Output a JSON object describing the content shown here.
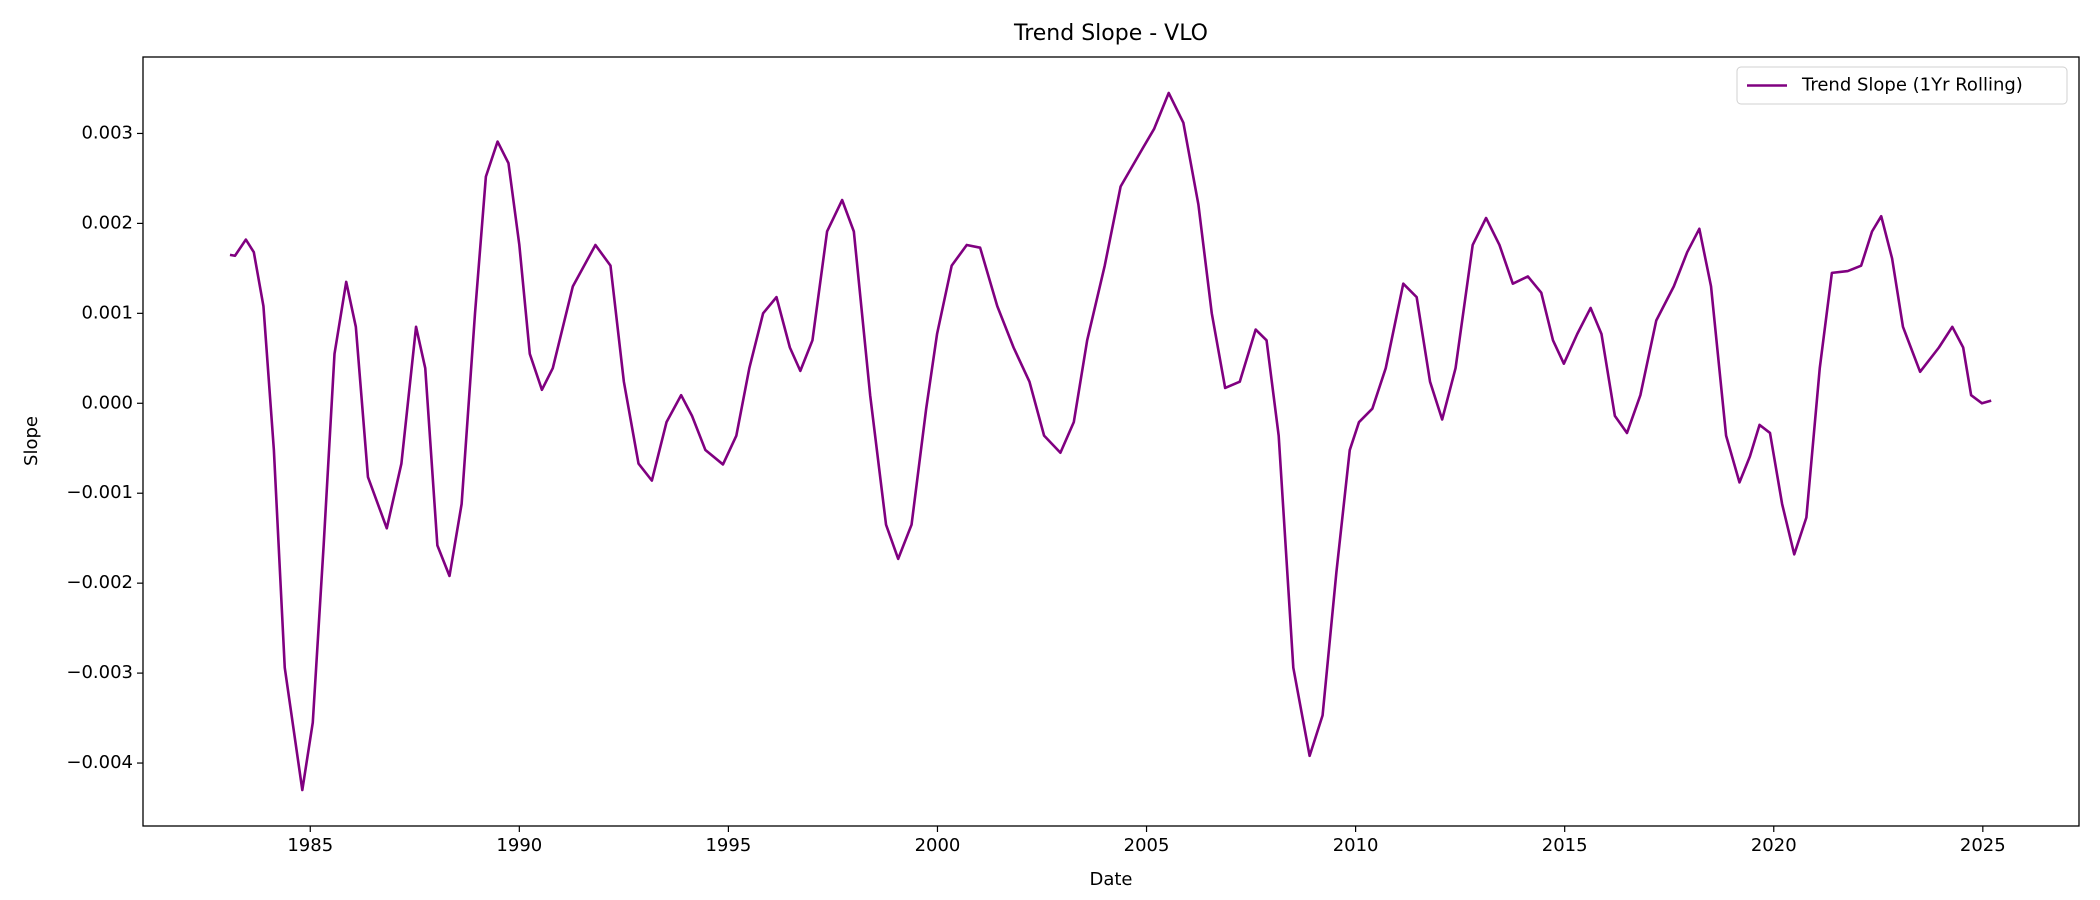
{
  "chart_data": {
    "type": "line",
    "title": "Trend Slope - VLO",
    "xlabel": "Date",
    "ylabel": "Slope",
    "x": [
      1983.08,
      1983.2,
      1983.46,
      1983.65,
      1983.88,
      1984.13,
      1984.39,
      1984.81,
      1985.06,
      1985.32,
      1985.58,
      1985.86,
      1986.09,
      1986.38,
      1986.83,
      1987.18,
      1987.53,
      1987.75,
      1988.04,
      1988.33,
      1988.62,
      1988.94,
      1989.2,
      1989.48,
      1989.74,
      1990.0,
      1990.25,
      1990.54,
      1990.8,
      1991.28,
      1991.82,
      1992.18,
      1992.5,
      1992.85,
      1993.17,
      1993.52,
      1993.87,
      1994.13,
      1994.45,
      1994.87,
      1995.19,
      1995.5,
      1995.83,
      1996.15,
      1996.47,
      1996.72,
      1997.01,
      1997.36,
      1997.72,
      1998.0,
      1998.39,
      1998.77,
      1999.06,
      1999.38,
      1999.73,
      1999.99,
      2000.34,
      2000.7,
      2001.02,
      2001.43,
      2001.82,
      2002.2,
      2002.55,
      2002.94,
      2003.26,
      2003.58,
      2004.0,
      2004.38,
      2004.89,
      2005.18,
      2005.53,
      2005.88,
      2006.24,
      2006.56,
      2006.88,
      2007.23,
      2007.61,
      2007.87,
      2008.16,
      2008.51,
      2008.9,
      2009.21,
      2009.54,
      2009.86,
      2010.08,
      2010.4,
      2010.72,
      2011.14,
      2011.46,
      2011.78,
      2012.07,
      2012.39,
      2012.8,
      2013.12,
      2013.44,
      2013.76,
      2014.12,
      2014.44,
      2014.72,
      2014.98,
      2015.3,
      2015.62,
      2015.88,
      2016.2,
      2016.49,
      2016.81,
      2017.19,
      2017.61,
      2017.93,
      2018.22,
      2018.5,
      2018.86,
      2019.18,
      2019.43,
      2019.66,
      2019.91,
      2020.2,
      2020.49,
      2020.78,
      2021.1,
      2021.39,
      2021.77,
      2022.09,
      2022.35,
      2022.57,
      2022.83,
      2023.09,
      2023.5,
      2023.95,
      2024.27,
      2024.53,
      2024.72,
      2024.98,
      2025.2
    ],
    "series": [
      {
        "name": "Trend Slope (1Yr Rolling)",
        "color": "#800080",
        "values": [
          0.00165,
          0.00164,
          0.00182,
          0.00168,
          0.00108,
          -0.00052,
          -0.00294,
          -0.0043,
          -0.00355,
          -0.00158,
          0.00055,
          0.00135,
          0.00085,
          -0.00082,
          -0.00139,
          -0.00067,
          0.00085,
          0.00039,
          -0.00158,
          -0.00192,
          -0.00112,
          0.001,
          0.00252,
          0.00291,
          0.00267,
          0.00176,
          0.00055,
          0.00015,
          0.00039,
          0.0013,
          0.00176,
          0.00153,
          0.00024,
          -0.00067,
          -0.00086,
          -0.00021,
          9e-05,
          -0.00014,
          -0.00052,
          -0.00068,
          -0.00036,
          0.00039,
          0.001,
          0.00118,
          0.00062,
          0.00036,
          0.0007,
          0.00191,
          0.00226,
          0.00191,
          9e-05,
          -0.00135,
          -0.00173,
          -0.00135,
          -6e-05,
          0.00077,
          0.00153,
          0.00176,
          0.00173,
          0.00108,
          0.00062,
          0.00024,
          -0.00036,
          -0.00055,
          -0.00021,
          0.0007,
          0.00153,
          0.00241,
          0.00282,
          0.00305,
          0.00345,
          0.00312,
          0.00221,
          0.001,
          0.00017,
          0.00024,
          0.00082,
          0.0007,
          -0.00036,
          -0.00294,
          -0.00392,
          -0.00347,
          -0.00188,
          -0.00052,
          -0.00021,
          -6e-05,
          0.00039,
          0.00133,
          0.00118,
          0.00024,
          -0.00018,
          0.00039,
          0.00176,
          0.00206,
          0.00176,
          0.00133,
          0.00141,
          0.00123,
          0.0007,
          0.00044,
          0.00077,
          0.00106,
          0.00077,
          -0.00014,
          -0.00033,
          9e-05,
          0.00092,
          0.0013,
          0.00168,
          0.00194,
          0.0013,
          -0.00036,
          -0.00088,
          -0.00059,
          -0.00024,
          -0.00033,
          -0.00112,
          -0.00168,
          -0.00127,
          0.00039,
          0.00145,
          0.00147,
          0.00153,
          0.00191,
          0.00208,
          0.00161,
          0.00085,
          0.00035,
          0.00062,
          0.00085,
          0.00062,
          9e-05,
          0,
          3e-05
        ]
      }
    ],
    "xlim": [
      1981.0,
      2027.3
    ],
    "xticks": [
      1985,
      1990,
      1995,
      2000,
      2005,
      2010,
      2015,
      2020,
      2025
    ],
    "ylim": [
      -0.0047,
      0.00385
    ],
    "yticks": [
      {
        "value": -0.004,
        "label": "−0.004"
      },
      {
        "value": -0.003,
        "label": "−0.003"
      },
      {
        "value": -0.002,
        "label": "−0.002"
      },
      {
        "value": -0.001,
        "label": "−0.001"
      },
      {
        "value": 0,
        "label": "0.000"
      },
      0.001,
      0.002,
      0.003
    ],
    "legend": "upper right",
    "grid": false
  }
}
